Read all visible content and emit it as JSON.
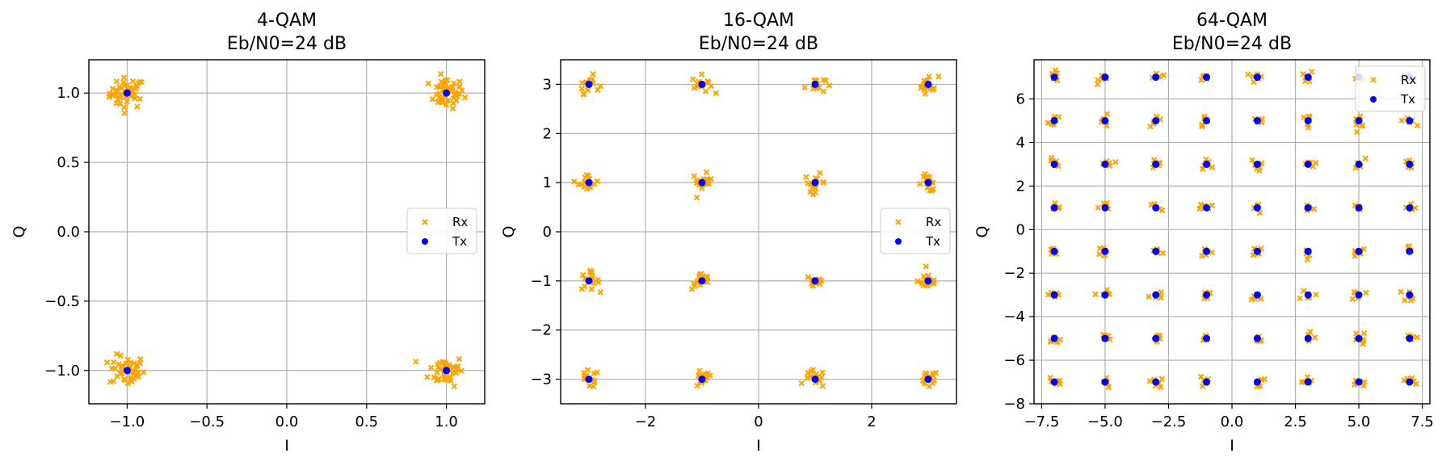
{
  "colors": {
    "rx": "#FFA500",
    "tx": "#0000FF",
    "grid": "#b0b0b0",
    "axis": "#000000",
    "background": "#ffffff"
  },
  "chart_data": [
    {
      "type": "scatter",
      "title": "4-QAM",
      "subtitle": "Eb/N0=24 dB",
      "xlabel": "I",
      "ylabel": "Q",
      "xlim": [
        -1.24,
        1.24
      ],
      "ylim": [
        -1.24,
        1.24
      ],
      "xticks": [
        -1.0,
        -0.5,
        0.0,
        0.5,
        1.0
      ],
      "xtick_labels": [
        "−1.0",
        "−0.5",
        "0.0",
        "0.5",
        "1.0"
      ],
      "yticks": [
        -1.0,
        -0.5,
        0.0,
        0.5,
        1.0
      ],
      "ytick_labels": [
        "−1.0",
        "−0.5",
        "0.0",
        "0.5",
        "1.0"
      ],
      "grid": true,
      "legend": "center-right",
      "series": [
        {
          "name": "Rx",
          "marker": "x",
          "spread": 0.055,
          "per_point": 45,
          "x": [
            -1,
            1,
            -1,
            1
          ],
          "y": [
            1,
            1,
            -1,
            -1
          ]
        },
        {
          "name": "Tx",
          "marker": "o",
          "x": [
            -1,
            1,
            -1,
            1
          ],
          "y": [
            1,
            1,
            -1,
            -1
          ]
        }
      ]
    },
    {
      "type": "scatter",
      "title": "16-QAM",
      "subtitle": "Eb/N0=24 dB",
      "xlabel": "I",
      "ylabel": "Q",
      "xlim": [
        -3.5,
        3.5
      ],
      "ylim": [
        -3.5,
        3.5
      ],
      "xticks": [
        -2,
        0,
        2
      ],
      "xtick_labels": [
        "−2",
        "0",
        "2"
      ],
      "yticks": [
        -3,
        -2,
        -1,
        0,
        1,
        2,
        3
      ],
      "ytick_labels": [
        "−3",
        "−2",
        "−1",
        "0",
        "1",
        "2",
        "3"
      ],
      "grid": true,
      "legend": "center-right",
      "series": [
        {
          "name": "Rx",
          "marker": "x",
          "spread": 0.09,
          "per_point": 16,
          "x": [
            -3,
            -1,
            1,
            3,
            -3,
            -1,
            1,
            3,
            -3,
            -1,
            1,
            3,
            -3,
            -1,
            1,
            3
          ],
          "y": [
            3,
            3,
            3,
            3,
            1,
            1,
            1,
            1,
            -1,
            -1,
            -1,
            -1,
            -3,
            -3,
            -3,
            -3
          ]
        },
        {
          "name": "Tx",
          "marker": "o",
          "x": [
            -3,
            -1,
            1,
            3,
            -3,
            -1,
            1,
            3,
            -3,
            -1,
            1,
            3,
            -3,
            -1,
            1,
            3
          ],
          "y": [
            3,
            3,
            3,
            3,
            1,
            1,
            1,
            1,
            -1,
            -1,
            -1,
            -1,
            -3,
            -3,
            -3,
            -3
          ]
        }
      ]
    },
    {
      "type": "scatter",
      "title": "64-QAM",
      "subtitle": "Eb/N0=24 dB",
      "xlabel": "I",
      "ylabel": "Q",
      "xlim": [
        -7.8,
        7.8
      ],
      "ylim": [
        -8.0,
        7.8
      ],
      "xticks": [
        -7.5,
        -5.0,
        -2.5,
        0.0,
        2.5,
        5.0,
        7.5
      ],
      "xtick_labels": [
        "−7.5",
        "−5.0",
        "−2.5",
        "0.0",
        "2.5",
        "5.0",
        "7.5"
      ],
      "yticks": [
        -8,
        -6,
        -4,
        -2,
        0,
        2,
        4,
        6
      ],
      "ytick_labels": [
        "−8",
        "−6",
        "−4",
        "−2",
        "0",
        "2",
        "4",
        "6"
      ],
      "grid": true,
      "legend": "top-right",
      "series": [
        {
          "name": "Rx",
          "marker": "x",
          "spread": 0.13,
          "per_point": 6,
          "x": [
            -7,
            -5,
            -3,
            -1,
            1,
            3,
            5,
            7,
            -7,
            -5,
            -3,
            -1,
            1,
            3,
            5,
            7,
            -7,
            -5,
            -3,
            -1,
            1,
            3,
            5,
            7,
            -7,
            -5,
            -3,
            -1,
            1,
            3,
            5,
            7,
            -7,
            -5,
            -3,
            -1,
            1,
            3,
            5,
            7,
            -7,
            -5,
            -3,
            -1,
            1,
            3,
            5,
            7,
            -7,
            -5,
            -3,
            -1,
            1,
            3,
            5,
            7,
            -7,
            -5,
            -3,
            -1,
            1,
            3,
            5,
            7
          ],
          "y": [
            7,
            7,
            7,
            7,
            7,
            7,
            7,
            7,
            5,
            5,
            5,
            5,
            5,
            5,
            5,
            5,
            3,
            3,
            3,
            3,
            3,
            3,
            3,
            3,
            1,
            1,
            1,
            1,
            1,
            1,
            1,
            1,
            -1,
            -1,
            -1,
            -1,
            -1,
            -1,
            -1,
            -1,
            -3,
            -3,
            -3,
            -3,
            -3,
            -3,
            -3,
            -3,
            -5,
            -5,
            -5,
            -5,
            -5,
            -5,
            -5,
            -5,
            -7,
            -7,
            -7,
            -7,
            -7,
            -7,
            -7,
            -7
          ]
        },
        {
          "name": "Tx",
          "marker": "o",
          "x": [
            -7,
            -5,
            -3,
            -1,
            1,
            3,
            5,
            7,
            -7,
            -5,
            -3,
            -1,
            1,
            3,
            5,
            7,
            -7,
            -5,
            -3,
            -1,
            1,
            3,
            5,
            7,
            -7,
            -5,
            -3,
            -1,
            1,
            3,
            5,
            7,
            -7,
            -5,
            -3,
            -1,
            1,
            3,
            5,
            7,
            -7,
            -5,
            -3,
            -1,
            1,
            3,
            5,
            7,
            -7,
            -5,
            -3,
            -1,
            1,
            3,
            5,
            7,
            -7,
            -5,
            -3,
            -1,
            1,
            3,
            5,
            7
          ],
          "y": [
            7,
            7,
            7,
            7,
            7,
            7,
            7,
            7,
            5,
            5,
            5,
            5,
            5,
            5,
            5,
            5,
            3,
            3,
            3,
            3,
            3,
            3,
            3,
            3,
            1,
            1,
            1,
            1,
            1,
            1,
            1,
            1,
            -1,
            -1,
            -1,
            -1,
            -1,
            -1,
            -1,
            -1,
            -3,
            -3,
            -3,
            -3,
            -3,
            -3,
            -3,
            -3,
            -5,
            -5,
            -5,
            -5,
            -5,
            -5,
            -5,
            -5,
            -7,
            -7,
            -7,
            -7,
            -7,
            -7,
            -7,
            -7
          ]
        }
      ]
    }
  ]
}
